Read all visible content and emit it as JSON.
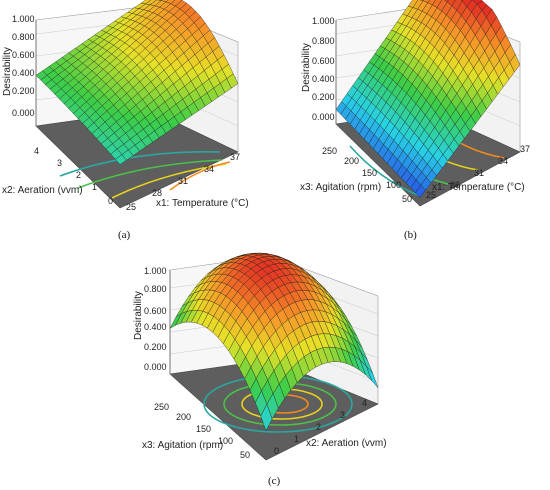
{
  "chart_data": [
    {
      "type": "surface",
      "panel_label": "(a)",
      "zlabel": "Desirability",
      "zticks": [
        "0.000",
        "0.200",
        "0.400",
        "0.600",
        "0.800",
        "1.000"
      ],
      "zlim": [
        0,
        1
      ],
      "x_axis": {
        "label": "x1: Temperature (°C)",
        "ticks": [
          "25",
          "28",
          "31",
          "34",
          "37"
        ],
        "range": [
          25,
          37
        ]
      },
      "y_axis": {
        "label": "x2: Aeration (vvm)",
        "ticks": [
          "0",
          "1",
          "2",
          "3",
          "4"
        ],
        "range": [
          0,
          4
        ]
      },
      "surface_samples": [
        {
          "x1": 25,
          "x2": 0,
          "desirability": 0.3
        },
        {
          "x1": 25,
          "x2": 4,
          "desirability": 0.45
        },
        {
          "x1": 37,
          "x2": 0,
          "desirability": 0.55
        },
        {
          "x1": 37,
          "x2": 4,
          "desirability": 0.7
        },
        {
          "x1": 37,
          "x2": 2.5,
          "desirability": 0.92
        }
      ]
    },
    {
      "type": "surface",
      "panel_label": "(b)",
      "zlabel": "Desirability",
      "zticks": [
        "0.000",
        "0.200",
        "0.400",
        "0.600",
        "0.800",
        "1.000"
      ],
      "zlim": [
        0,
        1
      ],
      "x_axis": {
        "label": "x1: Temperature (°C)",
        "ticks": [
          "25",
          "28",
          "31",
          "34",
          "37"
        ],
        "range": [
          25,
          37
        ]
      },
      "y_axis": {
        "label": "x3: Agitation (rpm)",
        "ticks": [
          "50",
          "100",
          "150",
          "200",
          "250"
        ],
        "range": [
          50,
          250
        ]
      },
      "surface_samples": [
        {
          "x1": 25,
          "x3": 50,
          "desirability": 0.0
        },
        {
          "x1": 25,
          "x3": 250,
          "desirability": 0.1
        },
        {
          "x1": 37,
          "x3": 50,
          "desirability": 0.55
        },
        {
          "x1": 37,
          "x3": 250,
          "desirability": 0.75
        },
        {
          "x1": 37,
          "x3": 200,
          "desirability": 0.98
        }
      ]
    },
    {
      "type": "surface",
      "panel_label": "(c)",
      "zlabel": "Desirability",
      "zticks": [
        "0.000",
        "0.200",
        "0.400",
        "0.600",
        "0.800",
        "1.000"
      ],
      "zlim": [
        0,
        1
      ],
      "x_axis": {
        "label": "x2: Aeration (vvm)",
        "ticks": [
          "0",
          "1",
          "2",
          "3",
          "4"
        ],
        "range": [
          0,
          4
        ]
      },
      "y_axis": {
        "label": "x3: Agitation (rpm)",
        "ticks": [
          "50",
          "100",
          "150",
          "200",
          "250"
        ],
        "range": [
          50,
          250
        ]
      },
      "surface_samples": [
        {
          "x2": 0,
          "x3": 50,
          "desirability": 0.25
        },
        {
          "x2": 4,
          "x3": 50,
          "desirability": 0.35
        },
        {
          "x2": 0,
          "x3": 250,
          "desirability": 0.45
        },
        {
          "x2": 4,
          "x3": 250,
          "desirability": 0.5
        },
        {
          "x2": 2,
          "x3": 175,
          "desirability": 0.98
        }
      ]
    }
  ]
}
